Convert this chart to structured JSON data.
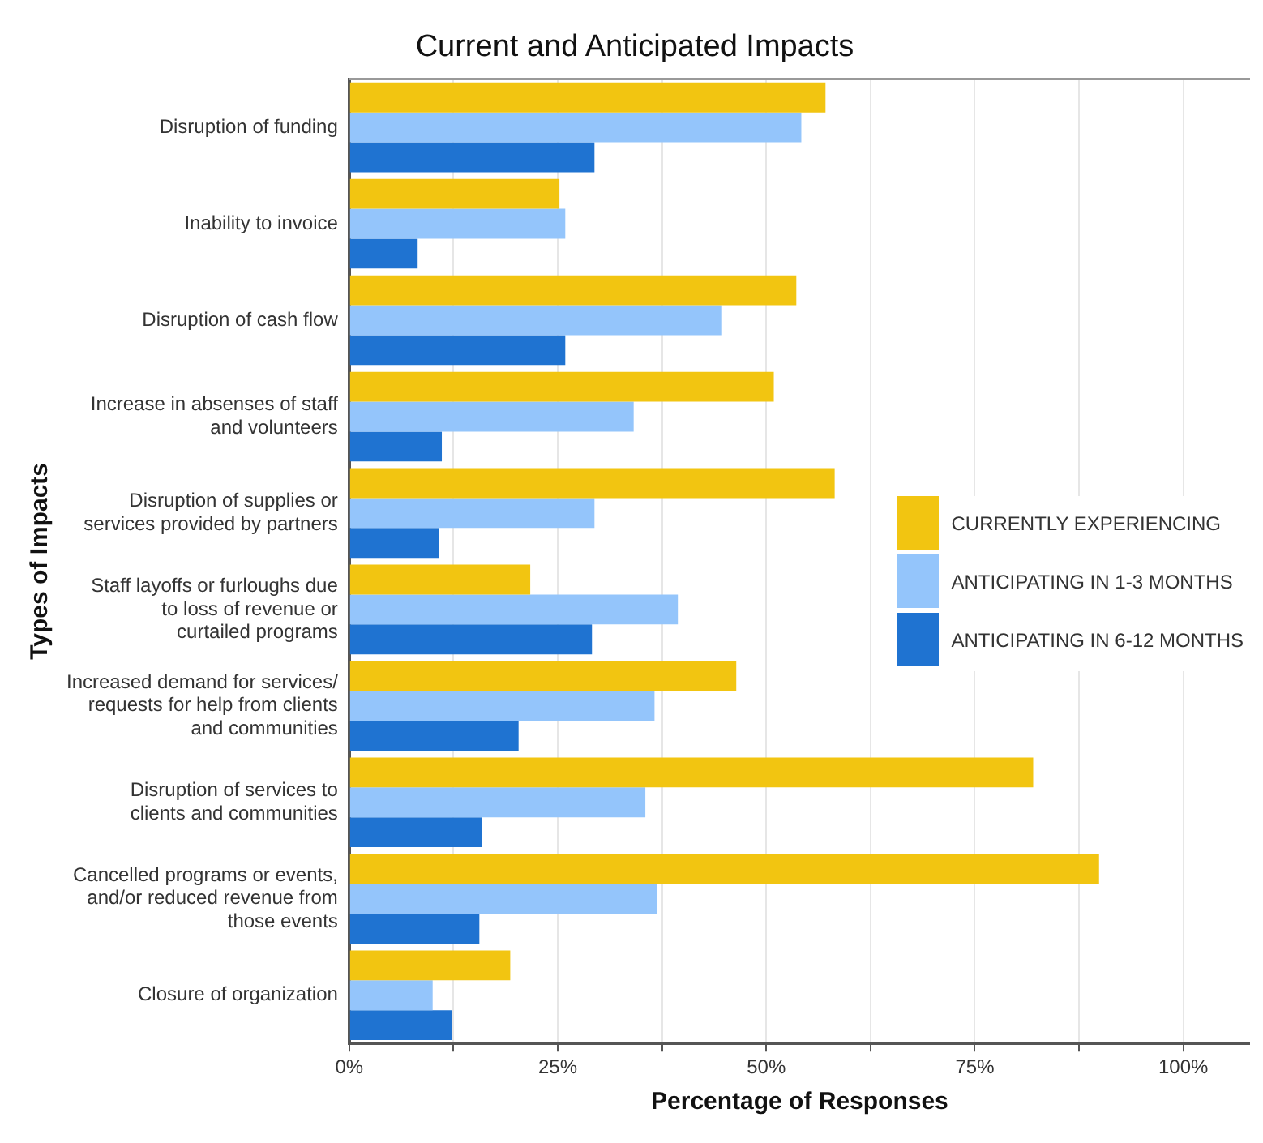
{
  "chart_data": {
    "type": "bar",
    "orientation": "horizontal",
    "title": "Current and Anticipated Impacts",
    "xlabel": "Percentage of Responses",
    "ylabel": "Types of Impacts",
    "categories": [
      "Disruption of funding",
      "Inability to invoice",
      "Disruption of cash flow",
      "Increase in absenses of staff and volunteers",
      "Disruption of supplies or services provided by partners",
      "Staff layoffs or furloughs due to loss of revenue or curtailed programs",
      "Increased demand for services/ requests for help from clients and communities",
      "Disruption of services to clients and communities",
      "Cancelled programs or events, and/or reduced revenue from those events",
      "Closure of organization"
    ],
    "series": [
      {
        "name": "CURRENTLY EXPERIENCING",
        "color": "#f2c511",
        "values": [
          57.1,
          25.2,
          53.6,
          50.9,
          58.2,
          21.7,
          46.4,
          82,
          89.9,
          19.3
        ]
      },
      {
        "name": "ANTICIPATING IN 1-3 MONTHS",
        "color": "#94c5fb",
        "values": [
          54.2,
          25.9,
          44.7,
          34.1,
          29.4,
          39.4,
          36.6,
          35.5,
          36.9,
          10
        ]
      },
      {
        "name": "ANTICIPATING IN 6-12 MONTHS",
        "color": "#1f73d1",
        "values": [
          29.4,
          8.2,
          25.9,
          11.1,
          10.8,
          29.1,
          20.3,
          15.9,
          15.6,
          12.3
        ]
      }
    ],
    "xlim": [
      0,
      108
    ],
    "xticks": [
      {
        "value": 0,
        "label": "0%"
      },
      {
        "value": 12.5,
        "label": null
      },
      {
        "value": 25,
        "label": "25%"
      },
      {
        "value": 37.5,
        "label": null
      },
      {
        "value": 50,
        "label": "50%"
      },
      {
        "value": 62.5,
        "label": null
      },
      {
        "value": 75,
        "label": "75%"
      },
      {
        "value": 87.5,
        "label": null
      },
      {
        "value": 100,
        "label": "100%"
      }
    ],
    "grid": "x",
    "legend": "right"
  }
}
